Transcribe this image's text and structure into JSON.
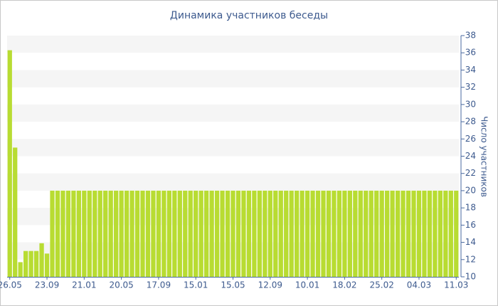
{
  "chart_data": {
    "type": "bar",
    "title": "Динамика участников беседы",
    "y_label": "Число участников",
    "categories": [
      "26.05",
      null,
      null,
      null,
      null,
      null,
      null,
      "23.09",
      null,
      null,
      null,
      null,
      null,
      null,
      "21.01",
      null,
      null,
      null,
      null,
      null,
      null,
      "20.05",
      null,
      null,
      null,
      null,
      null,
      null,
      "17.09",
      null,
      null,
      null,
      null,
      null,
      null,
      "15.01",
      null,
      null,
      null,
      null,
      null,
      null,
      "15.05",
      null,
      null,
      null,
      null,
      null,
      null,
      "12.09",
      null,
      null,
      null,
      null,
      null,
      null,
      "10.01",
      null,
      null,
      null,
      null,
      null,
      null,
      "18.02",
      null,
      null,
      null,
      null,
      null,
      null,
      "25.02",
      null,
      null,
      null,
      null,
      null,
      null,
      "04.03",
      null,
      null,
      null,
      null,
      null,
      null,
      "11.03"
    ],
    "values": [
      36.3,
      25,
      11.7,
      13,
      13,
      13,
      13.9,
      12.7,
      20,
      20,
      20,
      20,
      20,
      20,
      20,
      20,
      20,
      20,
      20,
      20,
      20,
      20,
      20,
      20,
      20,
      20,
      20,
      20,
      20,
      20,
      20,
      20,
      20,
      20,
      20,
      20,
      20,
      20,
      20,
      20,
      20,
      20,
      20,
      20,
      20,
      20,
      20,
      20,
      20,
      20,
      20,
      20,
      20,
      20,
      20,
      20,
      20,
      20,
      20,
      20,
      20,
      20,
      20,
      20,
      20,
      20,
      20,
      20,
      20,
      20,
      20,
      20,
      20,
      20,
      20,
      20,
      20,
      20,
      20,
      20,
      20,
      20,
      20,
      20,
      20
    ],
    "color": "#b8dc32",
    "ylim": [
      10,
      38
    ],
    "yticks": [
      10,
      12,
      14,
      16,
      18,
      20,
      22,
      24,
      26,
      28,
      30,
      32,
      34,
      36,
      38
    ],
    "grid": "bands",
    "y_axis_side": "right"
  }
}
